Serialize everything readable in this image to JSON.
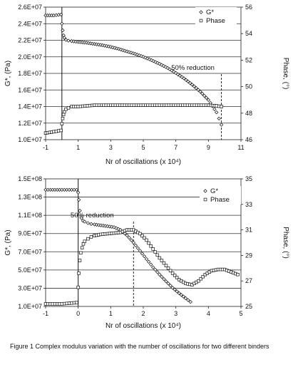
{
  "caption": "Figure 1 Complex modulus variation with the number of oscillations for two different binders",
  "chart_data": [
    {
      "type": "scatter",
      "xlabel": "Nr of oscillations (x 10⁴)",
      "ylabel_left": "G*, (Pa)",
      "ylabel_right": "Phase, (°)",
      "xlim": [
        -1,
        11
      ],
      "ylim_left": [
        10000000,
        26000000
      ],
      "ylim_right": [
        46,
        56
      ],
      "x_ticks": [
        "-1",
        "1",
        "3",
        "5",
        "7",
        "9",
        "11"
      ],
      "y_ticks_left": [
        "1.0E+07",
        "1.2E+07",
        "1.4E+07",
        "1.6E+07",
        "1.8E+07",
        "2.0E+07",
        "2.2E+07",
        "2.4E+07",
        "2.6E+07"
      ],
      "y_ticks_right": [
        "46",
        "48",
        "50",
        "52",
        "54",
        "56"
      ],
      "grid": true,
      "legend_position": "top-right",
      "legend": [
        "G*",
        "Phase"
      ],
      "annotation": "50% reduction",
      "annotation_x": 9.8,
      "series": [
        {
          "name": "G*",
          "marker": "diamond",
          "axis": "left",
          "x": [
            -1,
            -0.5,
            -0.05,
            0.0,
            0.05,
            0.1,
            0.15,
            0.25,
            0.4,
            0.6,
            1.0,
            1.5,
            2.0,
            2.5,
            3.0,
            3.5,
            4.0,
            4.5,
            5.0,
            5.5,
            6.0,
            6.5,
            7.0,
            7.5,
            8.0,
            8.5,
            9.0,
            9.5,
            9.8
          ],
          "values": [
            25000000,
            25000000,
            25100000,
            24000000,
            23200000,
            22600000,
            22300000,
            22050000,
            21950000,
            21900000,
            21800000,
            21700000,
            21550000,
            21400000,
            21200000,
            20950000,
            20650000,
            20350000,
            20000000,
            19600000,
            19150000,
            18650000,
            18050000,
            17400000,
            16650000,
            15800000,
            14800000,
            13300000,
            11800000
          ]
        },
        {
          "name": "Phase",
          "marker": "square",
          "axis": "right",
          "x": [
            -1,
            -0.5,
            -0.05,
            0.0,
            0.05,
            0.1,
            0.15,
            0.25,
            0.4,
            0.6,
            1.0,
            2.0,
            3.0,
            4.0,
            5.0,
            6.0,
            7.0,
            8.0,
            9.0,
            9.5,
            9.8
          ],
          "values": [
            46.5,
            46.6,
            46.7,
            47.2,
            47.6,
            47.9,
            48.1,
            48.3,
            48.4,
            48.5,
            48.5,
            48.6,
            48.6,
            48.6,
            48.6,
            48.6,
            48.6,
            48.6,
            48.6,
            48.55,
            48.5
          ]
        }
      ]
    },
    {
      "type": "scatter",
      "xlabel": "Nr of oscillations (x 10⁴)",
      "ylabel_left": "G*, (Pa)",
      "ylabel_right": "Phase, (°)",
      "xlim": [
        -1,
        5
      ],
      "ylim_left": [
        10000000,
        150000000
      ],
      "ylim_right": [
        25,
        35
      ],
      "x_ticks": [
        "-1",
        "0",
        "1",
        "2",
        "3",
        "4",
        "5"
      ],
      "y_ticks_left": [
        "1.0E+07",
        "3.0E+07",
        "5.0E+07",
        "7.0E+07",
        "9.0E+07",
        "1.1E+08",
        "1.3E+08",
        "1.5E+08"
      ],
      "y_ticks_right": [
        "25",
        "27",
        "29",
        "31",
        "33",
        "35"
      ],
      "grid": true,
      "legend_position": "top-right",
      "legend": [
        "G*",
        "Phase"
      ],
      "annotation": "50% reduction",
      "annotation_x": 1.7,
      "series": [
        {
          "name": "G*",
          "marker": "diamond",
          "axis": "left",
          "x": [
            -1,
            -0.5,
            -0.05,
            0.0,
            0.02,
            0.05,
            0.1,
            0.15,
            0.2,
            0.3,
            0.4,
            0.5,
            0.7,
            0.9,
            1.1,
            1.3,
            1.5,
            1.7,
            1.9,
            2.1,
            2.3,
            2.5,
            2.7,
            2.9,
            3.1,
            3.3,
            3.45
          ],
          "values": [
            138000000,
            138000000,
            138000000,
            135000000,
            127000000,
            115000000,
            107000000,
            104000000,
            103000000,
            101500000,
            100500000,
            100000000,
            99000000,
            98000000,
            97000000,
            94000000,
            88000000,
            80000000,
            71000000,
            62000000,
            53000000,
            45000000,
            37500000,
            30500000,
            24500000,
            19000000,
            15000000
          ]
        },
        {
          "name": "Phase",
          "marker": "square",
          "axis": "right",
          "x": [
            -1,
            -0.5,
            -0.05,
            0.0,
            0.02,
            0.05,
            0.08,
            0.12,
            0.16,
            0.2,
            0.3,
            0.4,
            0.5,
            0.7,
            0.9,
            1.1,
            1.3,
            1.5,
            1.7,
            1.9,
            2.1,
            2.3,
            2.5,
            2.7,
            2.9,
            3.1,
            3.3,
            3.5,
            3.7,
            3.9,
            4.1,
            4.3,
            4.5,
            4.7,
            4.9
          ],
          "values": [
            25.2,
            25.2,
            25.3,
            26.5,
            27.6,
            28.6,
            29.2,
            29.6,
            29.9,
            30.1,
            30.3,
            30.45,
            30.55,
            30.65,
            30.7,
            30.75,
            30.8,
            31.0,
            31.0,
            30.7,
            30.2,
            29.5,
            28.8,
            28.2,
            27.6,
            27.1,
            26.8,
            26.7,
            27.0,
            27.5,
            27.8,
            27.9,
            27.9,
            27.7,
            27.5
          ]
        }
      ]
    }
  ]
}
